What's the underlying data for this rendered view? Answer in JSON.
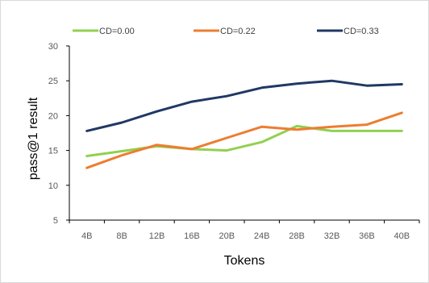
{
  "chart_data": {
    "type": "line",
    "xlabel": "Tokens",
    "ylabel": "pass@1 result",
    "ylim": [
      5,
      30
    ],
    "yticks": [
      5,
      10,
      15,
      20,
      25,
      30
    ],
    "categories": [
      "4B",
      "8B",
      "12B",
      "16B",
      "20B",
      "24B",
      "28B",
      "32B",
      "36B",
      "40B"
    ],
    "legend_position": "top",
    "grid": false,
    "series": [
      {
        "name": "CD=0.00",
        "color": "#92d050",
        "values": [
          14.2,
          14.9,
          15.6,
          15.2,
          15.0,
          16.2,
          18.5,
          17.8,
          17.8,
          17.8
        ]
      },
      {
        "name": "CD=0.22",
        "color": "#ed7d31",
        "values": [
          12.5,
          14.3,
          15.8,
          15.2,
          16.8,
          18.4,
          18.0,
          18.4,
          18.7,
          20.4
        ]
      },
      {
        "name": "CD=0.33",
        "color": "#203864",
        "values": [
          17.8,
          19.0,
          20.6,
          22.0,
          22.8,
          24.0,
          24.6,
          25.0,
          24.3,
          24.5
        ]
      }
    ]
  }
}
